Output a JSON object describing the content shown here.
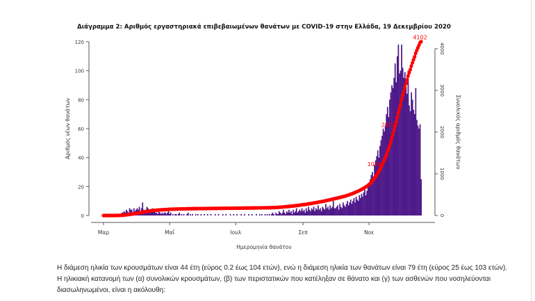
{
  "chart_data": {
    "type": "bar",
    "title": "Διάγραμμα 2: Αριθμός εργαστηριακά επιβεβαιωμένων θανάτων με COVID-19 στην Ελλάδα, 19 Δεκεμβρίου 2020",
    "xlabel": "Ημερομηνία θανάτου",
    "ylabel": "Αριθμός νέων θανάτων",
    "y2label": "Συνολικός αριθμός θανάτων",
    "ylim": [
      0,
      120
    ],
    "y2lim": [
      0,
      4000
    ],
    "yticks": [
      "0",
      "20",
      "40",
      "60",
      "80",
      "100",
      "120"
    ],
    "y2ticks": [
      "0",
      "1000",
      "2000",
      "3000",
      "4000"
    ],
    "xticks": [
      "Μαρ",
      "Μαΐ",
      "Ιουλ",
      "Σεπ",
      "Νοε"
    ],
    "xtick_days": [
      0,
      61,
      122,
      184,
      245
    ],
    "start_date": "March 1",
    "bar_color": "#4f1a8a",
    "line_color": "#ff0000",
    "cumulative_labels": [
      {
        "day": 255,
        "label": "1026"
      },
      {
        "day": 268,
        "label": "2052"
      },
      {
        "day": 292,
        "label": "4102"
      }
    ],
    "series": [
      {
        "name": "daily_deaths",
        "values": [
          0,
          0,
          0,
          0,
          0,
          0,
          0,
          0,
          0,
          0,
          0,
          1,
          0,
          1,
          1,
          0,
          1,
          2,
          2,
          3,
          2,
          4,
          3,
          2,
          5,
          4,
          4,
          2,
          5,
          3,
          4,
          5,
          4,
          6,
          3,
          5,
          9,
          4,
          3,
          4,
          6,
          5,
          4,
          3,
          2,
          5,
          3,
          4,
          2,
          2,
          1,
          3,
          2,
          1,
          2,
          1,
          2,
          2,
          1,
          2,
          3,
          1,
          2,
          0,
          1,
          0,
          1,
          1,
          0,
          1,
          2,
          0,
          1,
          0,
          1,
          0,
          0,
          1,
          2,
          0,
          1,
          0,
          1,
          0,
          0,
          1,
          0,
          1,
          0,
          0,
          1,
          0,
          0,
          1,
          0,
          0,
          1,
          0,
          0,
          1,
          0,
          0,
          0,
          1,
          0,
          0,
          1,
          0,
          0,
          0,
          1,
          0,
          0,
          1,
          0,
          0,
          0,
          1,
          0,
          0,
          1,
          0,
          0,
          1,
          0,
          0,
          0,
          1,
          0,
          0,
          1,
          0,
          0,
          0,
          1,
          0,
          0,
          1,
          0,
          0,
          0,
          1,
          0,
          0,
          1,
          0,
          1,
          0,
          0,
          1,
          0,
          1,
          0,
          1,
          0,
          1,
          2,
          1,
          0,
          2,
          1,
          1,
          3,
          2,
          1,
          2,
          4,
          2,
          1,
          3,
          2,
          4,
          2,
          3,
          1,
          4,
          2,
          3,
          5,
          2,
          3,
          4,
          3,
          5,
          3,
          4,
          2,
          5,
          3,
          6,
          4,
          3,
          5,
          4,
          6,
          3,
          5,
          4,
          7,
          4,
          5,
          3,
          6,
          5,
          4,
          8,
          5,
          6,
          4,
          7,
          5,
          6,
          10,
          5,
          5,
          6,
          7,
          4,
          8,
          6,
          5,
          9,
          7,
          6,
          8,
          10,
          7,
          9,
          11,
          8,
          10,
          12,
          9,
          13,
          11,
          10,
          14,
          12,
          15,
          13,
          16,
          18,
          14,
          17,
          20,
          22,
          25,
          28,
          30,
          27,
          35,
          38,
          41,
          45,
          40,
          48,
          52,
          55,
          60,
          58,
          62,
          70,
          75,
          68,
          80,
          85,
          90,
          88,
          95,
          105,
          92,
          110,
          118,
          98,
          100,
          118,
          102,
          95,
          99,
          88,
          84,
          100,
          76,
          72,
          85,
          80,
          73,
          70,
          88,
          66,
          62,
          60,
          63,
          25
        ]
      },
      {
        "name": "cumulative_deaths",
        "final_value": 4102
      }
    ]
  },
  "text": {
    "line1": "Η διάμεση ηλικία των κρουσμάτων είναι 44 έτη (εύρος 0.2 έως 104 ετών), ενώ η διάμεση ηλικία των θανάτων είναι 79 έτη (εύρος 25 έως 103 ετών).",
    "line2": "Η ηλικιακή κατανομή των (α) συνολικών κρουσμάτων, (β) των περιστατικών που κατέληξαν σε θάνατο και (γ) των ασθενών που νοσηλεύονται",
    "line3": "διασωληνωμένοι, είναι η ακόλουθη:"
  }
}
